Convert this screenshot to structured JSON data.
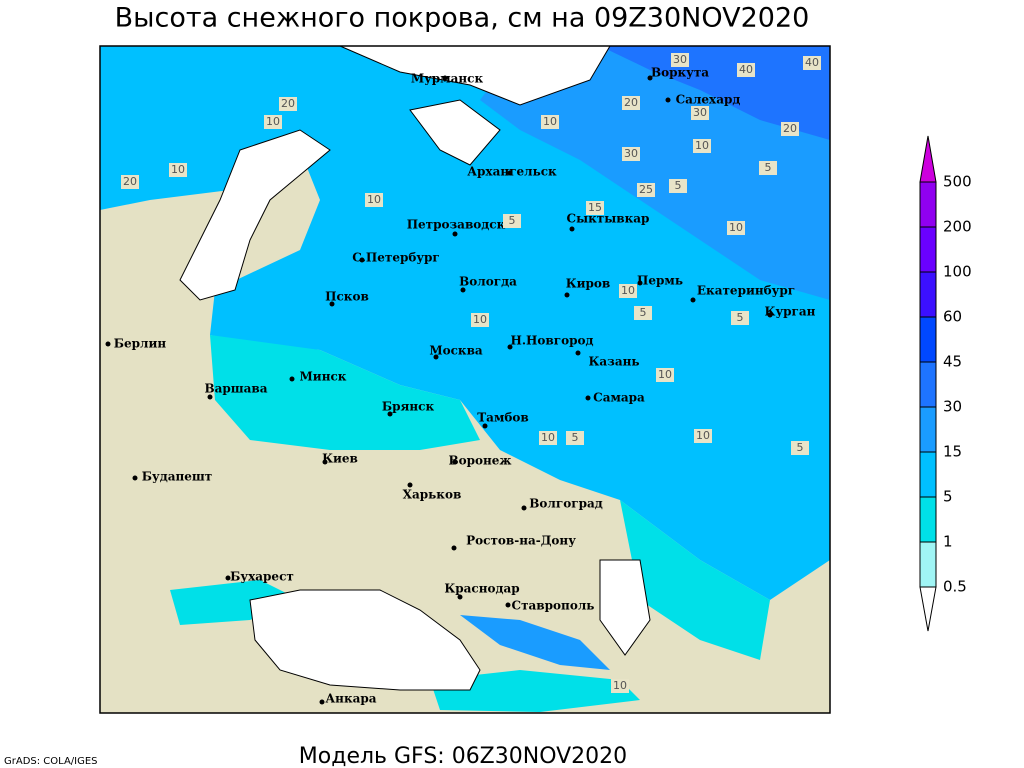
{
  "title": "Высота снежного покрова, см на 09Z30NOV2020",
  "footer": "Модель GFS: 06Z30NOV2020",
  "credit": "GrADS: COLA/IGES",
  "cities": [
    "Мурманск",
    "Воркута",
    "Салехард",
    "Архангельск",
    "Петрозаводск",
    "Сыктывкар",
    "С.Петербург",
    "Вологда",
    "Киров",
    "Пермь",
    "Екатеринбург",
    "Курган",
    "Псков",
    "Берлин",
    "Н.Новгород",
    "Москва",
    "Казань",
    "Минск",
    "Варшава",
    "Самара",
    "Брянск",
    "Тамбов",
    "Воронеж",
    "Киев",
    "Будапешт",
    "Харьков",
    "Волгоград",
    "Ростов-на-Дону",
    "Бухарест",
    "Краснодар",
    "Ставрополь",
    "Анкара"
  ],
  "contour_labels": [
    20,
    10,
    20,
    10,
    30,
    40,
    40,
    30,
    20,
    10,
    30,
    20,
    25,
    5,
    10,
    5,
    10,
    15,
    10,
    5,
    10,
    10,
    5,
    10,
    5,
    10,
    10,
    5,
    5,
    10
  ],
  "colorbar": {
    "levels": [
      0.5,
      1,
      5,
      15,
      30,
      45,
      60,
      100,
      200,
      500
    ],
    "colors": [
      "#ffffff",
      "#a0f5f5",
      "#00e0e8",
      "#00c0ff",
      "#1a9cff",
      "#1e74ff",
      "#0048ff",
      "#3c10ff",
      "#6a00ff",
      "#9000f0",
      "#cc00dd"
    ]
  }
}
